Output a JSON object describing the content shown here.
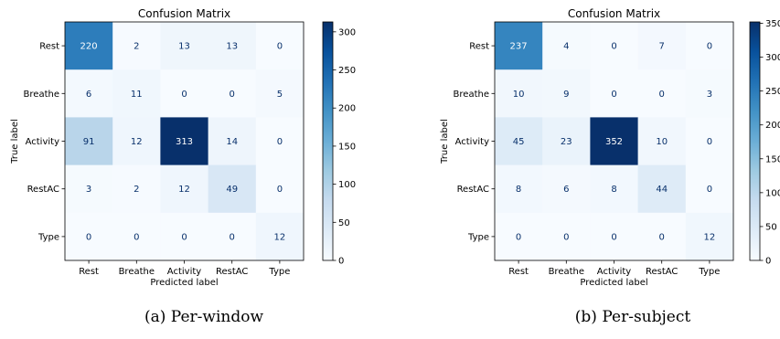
{
  "chart_data": [
    {
      "type": "heatmap",
      "title": "Confusion Matrix",
      "xlabel": "Predicted label",
      "ylabel": "True label",
      "x_categories": [
        "Rest",
        "Breathe",
        "Activity",
        "RestAC",
        "Type"
      ],
      "y_categories": [
        "Rest",
        "Breathe",
        "Activity",
        "RestAC",
        "Type"
      ],
      "values": [
        [
          220,
          2,
          13,
          13,
          0
        ],
        [
          6,
          11,
          0,
          0,
          5
        ],
        [
          91,
          12,
          313,
          14,
          0
        ],
        [
          3,
          2,
          12,
          49,
          0
        ],
        [
          0,
          0,
          0,
          0,
          12
        ]
      ],
      "colorbar": {
        "range": [
          0,
          313
        ],
        "ticks": [
          0,
          50,
          100,
          150,
          200,
          250,
          300
        ],
        "colormap": "Blues"
      },
      "caption": "(a) Per-window"
    },
    {
      "type": "heatmap",
      "title": "Confusion Matrix",
      "xlabel": "Predicted label",
      "ylabel": "True label",
      "x_categories": [
        "Rest",
        "Breathe",
        "Activity",
        "RestAC",
        "Type"
      ],
      "y_categories": [
        "Rest",
        "Breathe",
        "Activity",
        "RestAC",
        "Type"
      ],
      "values": [
        [
          237,
          4,
          0,
          7,
          0
        ],
        [
          10,
          9,
          0,
          0,
          3
        ],
        [
          45,
          23,
          352,
          10,
          0
        ],
        [
          8,
          6,
          8,
          44,
          0
        ],
        [
          0,
          0,
          0,
          0,
          12
        ]
      ],
      "colorbar": {
        "range": [
          0,
          352
        ],
        "ticks": [
          0,
          50,
          100,
          150,
          200,
          250,
          300,
          350
        ],
        "colormap": "Blues"
      },
      "caption": "(b) Per-subject"
    }
  ],
  "colors": {
    "blues_low": "#f7fbff",
    "blues_high": "#08306b",
    "text_dark": "#08306b",
    "text_light": "#ffffff"
  }
}
